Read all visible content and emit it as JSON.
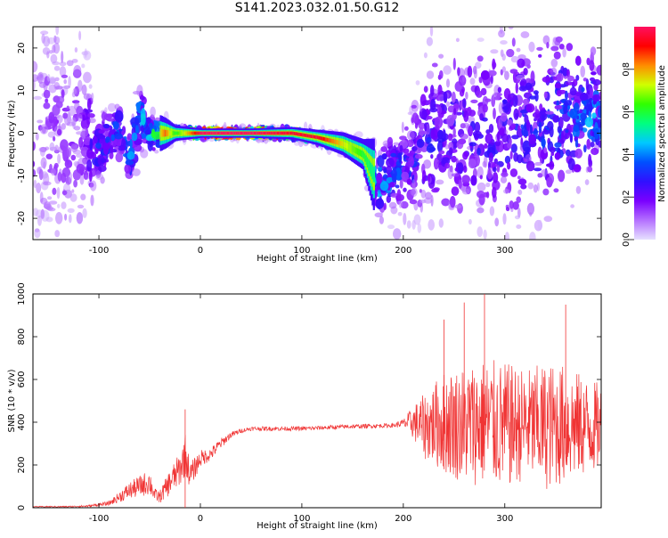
{
  "figure": {
    "title": "S141.2023.032.01.50.G12"
  },
  "colors": {
    "snr_line": "#f03434",
    "colormap": [
      "#e6e0ff",
      "#b470ff",
      "#7a00ff",
      "#3010ff",
      "#0050ff",
      "#00c8ff",
      "#00ff80",
      "#30ff00",
      "#d0ff00",
      "#ff8c00",
      "#ff0000",
      "#ff1060"
    ]
  },
  "chart_data": [
    {
      "type": "heatmap",
      "xlabel": "Height of straight line (km)",
      "ylabel": "Frequency (Hz)",
      "xlim": [
        -165,
        395
      ],
      "ylim": [
        -25,
        25
      ],
      "xticks": [
        -100,
        0,
        100,
        200,
        300
      ],
      "yticks": [
        -20,
        -10,
        0,
        10,
        20
      ],
      "colorbar": {
        "label": "Normalized spectral amplitude",
        "range": [
          0,
          1
        ],
        "ticks": [
          0.0,
          0.2,
          0.4,
          0.6,
          0.8
        ]
      },
      "ridge": [
        {
          "x": -165,
          "f_center": 0,
          "f_spread": 22,
          "amplitude": 0.15
        },
        {
          "x": -120,
          "f_center": 0,
          "f_spread": 20,
          "amplitude": 0.18
        },
        {
          "x": -100,
          "f_center": -4,
          "f_spread": 6,
          "amplitude": 0.35
        },
        {
          "x": -80,
          "f_center": 1,
          "f_spread": 5,
          "amplitude": 0.4
        },
        {
          "x": -70,
          "f_center": -6,
          "f_spread": 5,
          "amplitude": 0.45
        },
        {
          "x": -60,
          "f_center": 4,
          "f_spread": 6,
          "amplitude": 0.45
        },
        {
          "x": -50,
          "f_center": 0,
          "f_spread": 3,
          "amplitude": 0.55
        },
        {
          "x": -35,
          "f_center": 0,
          "f_spread": 2,
          "amplitude": 0.85
        },
        {
          "x": -25,
          "f_center": 0,
          "f_spread": 1,
          "amplitude": 0.6
        },
        {
          "x": 0,
          "f_center": 0,
          "f_spread": 0.6,
          "amplitude": 1.0
        },
        {
          "x": 50,
          "f_center": 0,
          "f_spread": 0.6,
          "amplitude": 1.0
        },
        {
          "x": 90,
          "f_center": 0,
          "f_spread": 0.8,
          "amplitude": 0.95
        },
        {
          "x": 115,
          "f_center": -1,
          "f_spread": 1,
          "amplitude": 0.95
        },
        {
          "x": 140,
          "f_center": -2.5,
          "f_spread": 1.5,
          "amplitude": 0.75
        },
        {
          "x": 160,
          "f_center": -5,
          "f_spread": 2,
          "amplitude": 0.6
        },
        {
          "x": 175,
          "f_center": -12,
          "f_spread": 6,
          "amplitude": 0.5
        },
        {
          "x": 200,
          "f_center": -8,
          "f_spread": 8,
          "amplitude": 0.35
        },
        {
          "x": 230,
          "f_center": 0,
          "f_spread": 14,
          "amplitude": 0.3
        },
        {
          "x": 300,
          "f_center": 0,
          "f_spread": 18,
          "amplitude": 0.3
        },
        {
          "x": 360,
          "f_center": 4,
          "f_spread": 14,
          "amplitude": 0.4
        },
        {
          "x": 395,
          "f_center": 4,
          "f_spread": 8,
          "amplitude": 0.5
        }
      ]
    },
    {
      "type": "line",
      "xlabel": "Height of straight line (km)",
      "ylabel": "SNR (10 * v/v)",
      "xlim": [
        -165,
        395
      ],
      "ylim": [
        0,
        1000
      ],
      "xticks": [
        -100,
        0,
        100,
        200,
        300
      ],
      "yticks": [
        0,
        200,
        400,
        600,
        800,
        1000
      ],
      "series": [
        {
          "x": [
            -165,
            -130,
            -110,
            -90,
            -80,
            -70,
            -60,
            -50,
            -45,
            -40,
            -30,
            -20,
            -15,
            -10,
            0,
            10,
            20,
            30,
            40,
            50,
            100,
            150,
            190,
            200,
            210,
            220,
            240,
            260,
            280,
            300,
            320,
            340,
            360,
            380,
            395
          ],
          "y": [
            5,
            5,
            8,
            20,
            50,
            80,
            100,
            120,
            60,
            50,
            120,
            180,
            250,
            150,
            230,
            250,
            300,
            340,
            360,
            370,
            370,
            380,
            385,
            395,
            400,
            380,
            400,
            390,
            400,
            380,
            390,
            380,
            390,
            380,
            380
          ],
          "noise": [
            2,
            3,
            5,
            10,
            25,
            40,
            50,
            60,
            30,
            30,
            60,
            80,
            100,
            60,
            40,
            30,
            25,
            15,
            10,
            10,
            10,
            10,
            10,
            20,
            80,
            150,
            240,
            280,
            300,
            300,
            260,
            300,
            280,
            230,
            200
          ],
          "peaks": [
            {
              "x": -15,
              "y": 460
            },
            {
              "x": 280,
              "y": 1000
            },
            {
              "x": 260,
              "y": 960
            },
            {
              "x": 360,
              "y": 950
            },
            {
              "x": 240,
              "y": 880
            }
          ]
        }
      ]
    }
  ]
}
